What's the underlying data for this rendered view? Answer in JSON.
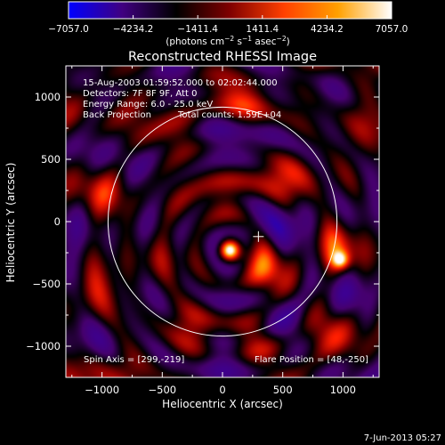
{
  "chart_data": {
    "type": "heatmap",
    "title": "Reconstructed RHESSI Image",
    "xlabel": "Heliocentric X (arcsec)",
    "ylabel": "Heliocentric Y (arcsec)",
    "xlim": [
      -1300,
      1300
    ],
    "ylim": [
      -1250,
      1250
    ],
    "x_ticks": [
      -1000,
      -500,
      0,
      500,
      1000
    ],
    "y_ticks": [
      -1000,
      -500,
      0,
      500,
      1000
    ],
    "x_tick_labels": [
      "−1000",
      "−500",
      "0",
      "500",
      "1000"
    ],
    "y_tick_labels": [
      "−1000",
      "−500",
      "0",
      "500",
      "1000"
    ],
    "colorbar": {
      "min": -7057.0,
      "max": 7057.0,
      "tick_labels": [
        "−7057.0",
        "−4234.2",
        "−1411.4",
        "1411.4",
        "4234.2",
        "7057.0"
      ],
      "units_prefix": "(photons cm",
      "units_sup1": "−2",
      "units_mid": " s",
      "units_sup2": "−1",
      "units_mid2": " asec",
      "units_sup3": "−2",
      "units_suffix": ")",
      "colors": [
        "#0000ff",
        "#400080",
        "#000000",
        "#800000",
        "#ff4000",
        "#ffa000",
        "#ffffff"
      ]
    },
    "solar_limb_radius_arcsec": 950,
    "flare_marker": [
      48,
      -250
    ],
    "peak_sources": [
      {
        "x": 60,
        "y": -230,
        "value": 7057
      },
      {
        "x": 980,
        "y": -310,
        "value": 5200
      }
    ]
  },
  "header": {
    "line1": "15-Aug-2003 01:59:52.000 to 02:02:44.000",
    "line2": "Detectors: 7F 8F 9F, Att 0",
    "line3": "Energy Range: 6.0 - 25.0 keV",
    "line4_left": "Back Projection",
    "line4_right": "Total counts: 1.59E+04"
  },
  "footer": {
    "spin_axis": "Spin Axis = [299,-219]",
    "flare_position": "Flare Position = [48,-250]",
    "timestamp": "7-Jun-2013 05:27"
  }
}
